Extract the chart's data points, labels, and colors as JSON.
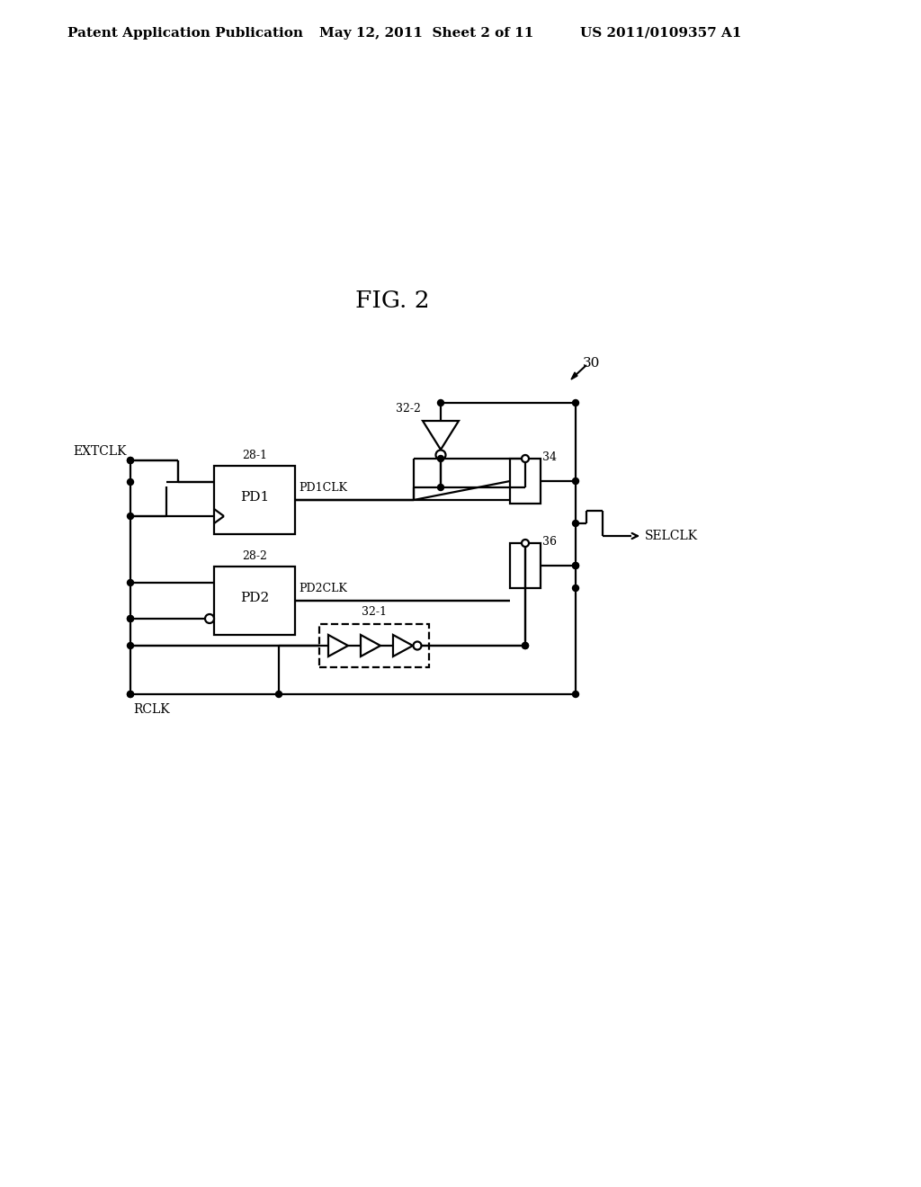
{
  "header_left": "Patent Application Publication",
  "header_mid": "May 12, 2011  Sheet 2 of 11",
  "header_right": "US 2011/0109357 A1",
  "fig_title": "FIG. 2",
  "label_30": "30",
  "label_32_2": "32-2",
  "label_32_1": "32-1",
  "label_28_1": "28-1",
  "label_28_2": "28-2",
  "label_34": "34",
  "label_36": "36",
  "label_PD1": "PD1",
  "label_PD2": "PD2",
  "label_EXTCLK": "EXTCLK",
  "label_RCLK": "RCLK",
  "label_SELCLK": "SELCLK",
  "label_PD1CLK": "PD1CLK",
  "label_PD2CLK": "PD2CLK",
  "lw": 1.6,
  "dot_r": 3.5
}
